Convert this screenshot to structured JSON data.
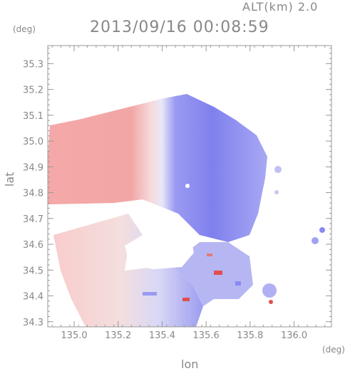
{
  "header": {
    "alt_label": "ALT(km) 2.0",
    "datetime": "2013/09/16 00:08:59"
  },
  "units": {
    "y_unit": "(deg)",
    "x_unit": "(deg)"
  },
  "chart_data": {
    "type": "heatmap",
    "title": "2013/09/16 00:08:59",
    "subtitle": "ALT(km) 2.0",
    "xlabel": "lon",
    "ylabel": "lat",
    "xlim": [
      134.88,
      136.17
    ],
    "ylim": [
      34.28,
      35.37
    ],
    "x_ticks": [
      "135.0",
      "135.2",
      "135.4",
      "135.6",
      "135.8",
      "136.0"
    ],
    "y_ticks": [
      "34.3",
      "34.4",
      "34.5",
      "34.6",
      "34.7",
      "34.8",
      "34.9",
      "35.0",
      "35.1",
      "35.2",
      "35.3"
    ],
    "x_tick_values": [
      135.0,
      135.2,
      135.4,
      135.6,
      135.8,
      136.0
    ],
    "y_tick_values": [
      34.3,
      34.4,
      34.5,
      34.6,
      34.7,
      34.8,
      34.9,
      35.0,
      35.1,
      35.2,
      35.3
    ],
    "radar_center": [
      135.52,
      34.82
    ],
    "colors": {
      "approaching_blue": "#7b7bf0",
      "receding_red": "#f2a3a3",
      "near_zero_white": "#f4f2f6",
      "strong_red": "#e03a3a",
      "axis_gray": "#999999"
    }
  }
}
